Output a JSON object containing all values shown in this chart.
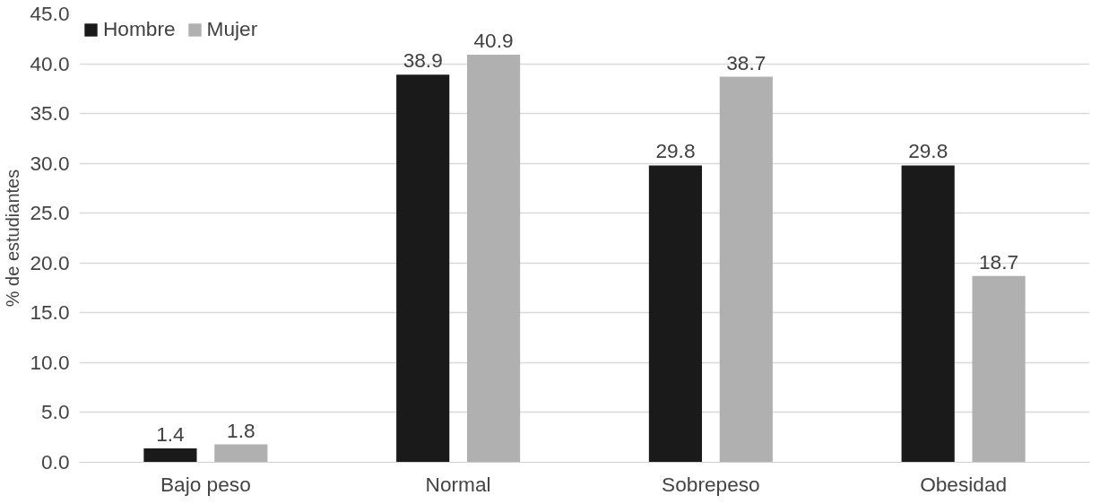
{
  "chart_data": {
    "type": "bar",
    "ylabel": "% de estudiantes",
    "categories": [
      "Bajo peso",
      "Normal",
      "Sobrepeso",
      "Obesidad"
    ],
    "series": [
      {
        "name": "Hombre",
        "color": "#1a1a1a",
        "values": [
          1.4,
          38.9,
          29.8,
          29.8
        ]
      },
      {
        "name": "Mujer",
        "color": "#b0b0b0",
        "values": [
          1.8,
          40.9,
          38.7,
          18.7
        ]
      }
    ],
    "ylim": [
      0,
      45
    ],
    "yticks": [
      {
        "value": 0,
        "label": "0.0"
      },
      {
        "value": 5,
        "label": "5.0"
      },
      {
        "value": 10,
        "label": "10.0"
      },
      {
        "value": 15,
        "label": "15.0"
      },
      {
        "value": 20,
        "label": "20.0"
      },
      {
        "value": 25,
        "label": "25.0"
      },
      {
        "value": 30,
        "label": "30.0"
      },
      {
        "value": 35,
        "label": "35.0"
      },
      {
        "value": 40,
        "label": "40.0"
      },
      {
        "value": 45,
        "label": "45.0"
      }
    ],
    "grid": "y",
    "legend": "top left",
    "data_labels": true
  }
}
